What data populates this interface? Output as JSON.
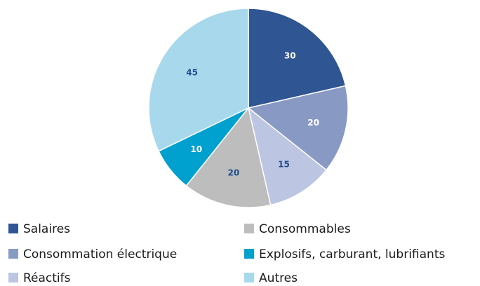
{
  "chart_data": {
    "type": "pie",
    "categories": [
      "Salaires",
      "Consommation électrique",
      "Réactifs",
      "Consommables",
      "Explosifs, carburant, lubrifiants",
      "Autres"
    ],
    "values": [
      30,
      20,
      15,
      20,
      10,
      45
    ],
    "colors": [
      "#2f5592",
      "#8899c4",
      "#bcc5e1",
      "#bdbdbd",
      "#00a0cf",
      "#a8d8ec"
    ],
    "label_colors": [
      "#ffffff",
      "#ffffff",
      "#1f4e8c",
      "#1f4e8c",
      "#ffffff",
      "#1f4e8c"
    ],
    "start_angle": "12 o'clock, clockwise",
    "legend": {
      "placement": "bottom",
      "columns": 2,
      "column_1": [
        "Salaires",
        "Consommation électrique",
        "Réactifs"
      ],
      "column_2": [
        "Consommables",
        "Explosifs, carburant, lubrifiants",
        "Autres"
      ]
    }
  }
}
